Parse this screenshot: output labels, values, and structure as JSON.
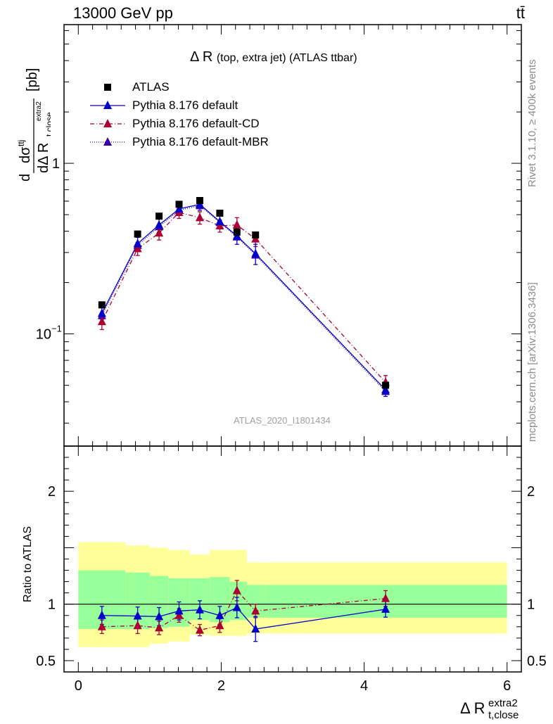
{
  "header": {
    "left": "13000 GeV pp",
    "right": "tt̄"
  },
  "plot_title_main": "Δ R",
  "plot_title_sub": "(top, extra jet) (ATLAS ttbar)",
  "side_labels": {
    "rivet": "Rivet 3.1.10, ≥ 400k events",
    "mcplots": "mcplots.cern.ch [arXiv:1306.3436]"
  },
  "watermark": "ATLAS_2020_I1801434",
  "legend": {
    "atlas": "ATLAS",
    "default": "Pythia 8.176 default",
    "cd": "Pythia 8.176 default-CD",
    "mbr": "Pythia 8.176 default-MBR"
  },
  "colors": {
    "atlas": "#000000",
    "default": "#0000cc",
    "cd": "#aa0033",
    "mbr": "#3300aa",
    "band_inner": "#99ff99",
    "band_outer": "#ffff99"
  },
  "chart_data": [
    {
      "type": "scatter",
      "panel": "main",
      "title": "Δ R (top, extra jet) (ATLAS ttbar)",
      "ylabel": "dσ^{ttj} / dΔ R_{t,close}^{extra2} [pb]",
      "yscale": "log",
      "ylim": [
        0.022,
        6.5
      ],
      "xlim": [
        -0.2,
        6.2
      ],
      "ytick_labels": [
        "10^{-1}",
        "1"
      ],
      "x": [
        0.33,
        0.83,
        1.13,
        1.41,
        1.7,
        1.98,
        2.22,
        2.48,
        4.3
      ],
      "series": [
        {
          "name": "ATLAS",
          "values": [
            0.148,
            0.385,
            0.49,
            0.575,
            0.605,
            0.51,
            0.395,
            0.38,
            0.05
          ]
        },
        {
          "name": "Pythia 8.176 default",
          "values": [
            0.132,
            0.338,
            0.435,
            0.54,
            0.575,
            0.455,
            0.375,
            0.295,
            0.047
          ],
          "err": [
            0.01,
            0.03,
            0.04,
            0.04,
            0.045,
            0.035,
            0.04,
            0.04,
            0.004
          ]
        },
        {
          "name": "Pythia 8.176 default-CD",
          "values": [
            0.118,
            0.316,
            0.39,
            0.515,
            0.48,
            0.43,
            0.435,
            0.36,
            0.052
          ],
          "err": [
            0.012,
            0.028,
            0.035,
            0.04,
            0.04,
            0.035,
            0.045,
            0.035,
            0.005
          ]
        },
        {
          "name": "Pythia 8.176 default-MBR",
          "values": [
            0.128,
            0.33,
            0.425,
            0.53,
            0.565,
            0.45,
            0.37,
            0.29,
            0.046
          ]
        }
      ]
    },
    {
      "type": "scatter",
      "panel": "ratio",
      "ylabel": "Ratio to ATLAS",
      "xlabel": "Δ R_{t,close}^{extra2}",
      "ylim": [
        0.4,
        2.4
      ],
      "xlim": [
        -0.2,
        6.2
      ],
      "x_ticks": [
        0,
        2,
        4,
        6
      ],
      "y_ticks": [
        0.5,
        1,
        2
      ],
      "x": [
        0.33,
        0.83,
        1.13,
        1.41,
        1.7,
        1.98,
        2.22,
        2.48,
        4.3
      ],
      "series": [
        {
          "name": "Pythia 8.176 default",
          "values": [
            0.9,
            0.895,
            0.89,
            0.94,
            0.95,
            0.9,
            0.97,
            0.78,
            0.955
          ],
          "err": [
            0.08,
            0.08,
            0.08,
            0.08,
            0.08,
            0.08,
            0.09,
            0.11,
            0.07
          ]
        },
        {
          "name": "Pythia 8.176 default-CD",
          "values": [
            0.8,
            0.81,
            0.79,
            0.9,
            0.77,
            0.81,
            1.12,
            0.94,
            1.05
          ],
          "err": [
            0.06,
            0.07,
            0.06,
            0.06,
            0.05,
            0.06,
            0.09,
            0.06,
            0.07
          ]
        }
      ],
      "bands": {
        "edges": [
          0.0,
          0.66,
          1.0,
          1.26,
          1.56,
          1.84,
          2.12,
          2.36,
          2.62,
          6.0
        ],
        "inner_lo": [
          0.78,
          0.78,
          0.79,
          0.8,
          0.86,
          0.84,
          0.86,
          0.88,
          0.88
        ],
        "inner_hi": [
          1.3,
          1.28,
          1.25,
          1.23,
          1.23,
          1.24,
          1.2,
          1.17,
          1.17
        ],
        "outer_lo": [
          0.62,
          0.62,
          0.65,
          0.67,
          0.73,
          0.72,
          0.72,
          0.74,
          0.74
        ],
        "outer_hi": [
          1.55,
          1.52,
          1.5,
          1.48,
          1.44,
          1.48,
          1.48,
          1.37,
          1.37
        ]
      }
    }
  ]
}
